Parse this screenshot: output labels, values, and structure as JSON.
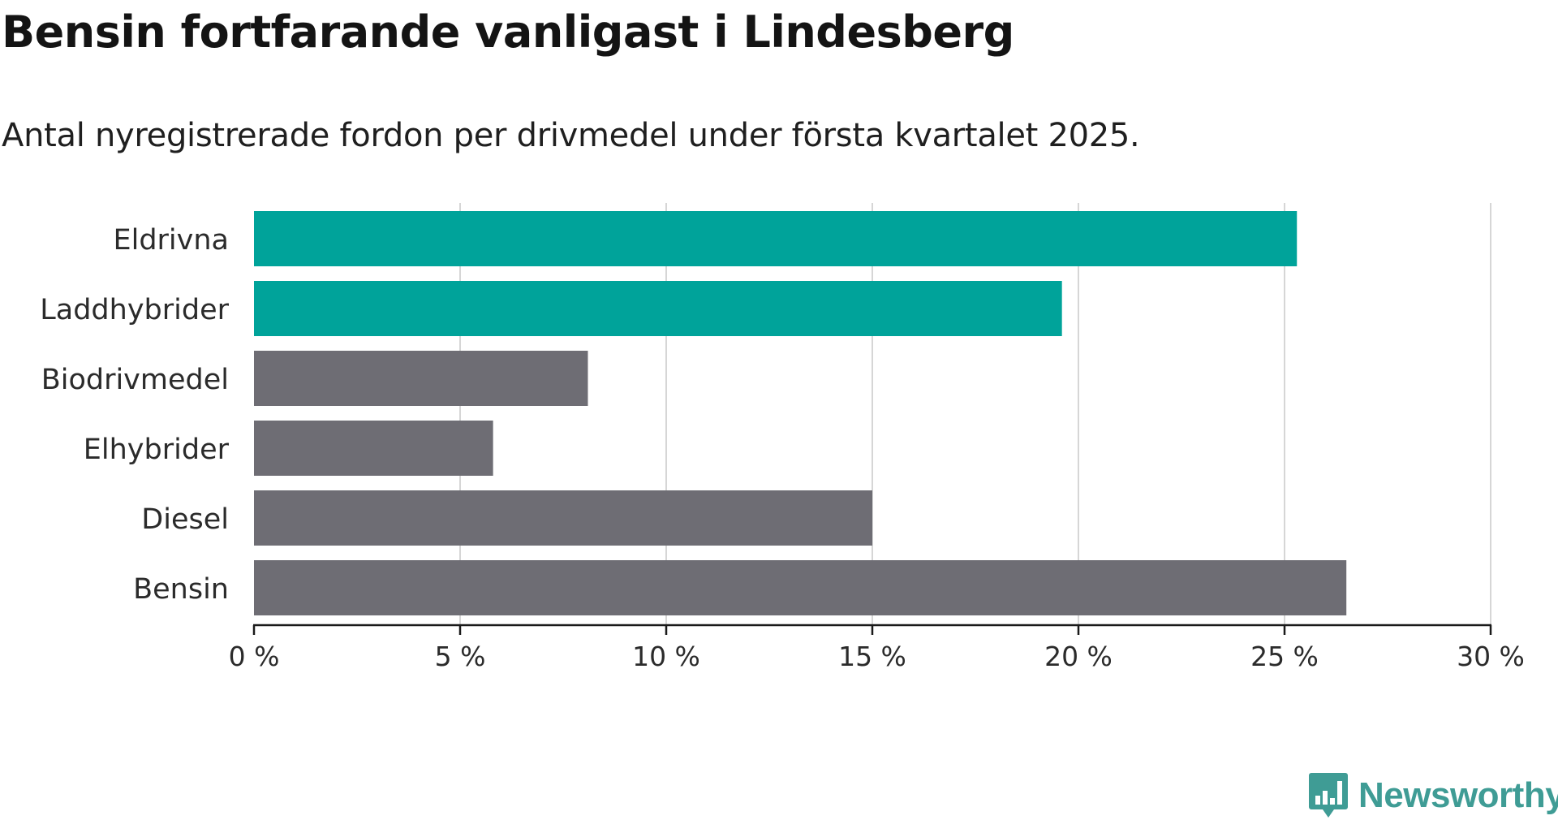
{
  "title": "Bensin fortfarande vanligast i Lindesberg",
  "subtitle": "Antal nyregistrerade fordon per drivmedel under första kvartalet 2025.",
  "brand": {
    "name": "Newsworthy",
    "color": "#3f9c95",
    "icon": "chart-bubble-icon"
  },
  "chart_data": {
    "type": "bar",
    "orientation": "horizontal",
    "categories": [
      "Eldrivna",
      "Laddhybrider",
      "Biodrivmedel",
      "Elhybrider",
      "Diesel",
      "Bensin"
    ],
    "values": [
      25.3,
      19.6,
      8.1,
      5.8,
      15.0,
      26.5
    ],
    "colors": [
      "#00a39a",
      "#00a39a",
      "#6e6d74",
      "#6e6d74",
      "#6e6d74",
      "#6e6d74"
    ],
    "xlim": [
      0,
      30
    ],
    "xticks": [
      0,
      5,
      10,
      15,
      20,
      25,
      30
    ],
    "xtick_labels": [
      "0 %",
      "5 %",
      "10 %",
      "15 %",
      "20 %",
      "25 %",
      "30 %"
    ],
    "grid": "vertical",
    "xlabel": "",
    "ylabel": ""
  }
}
